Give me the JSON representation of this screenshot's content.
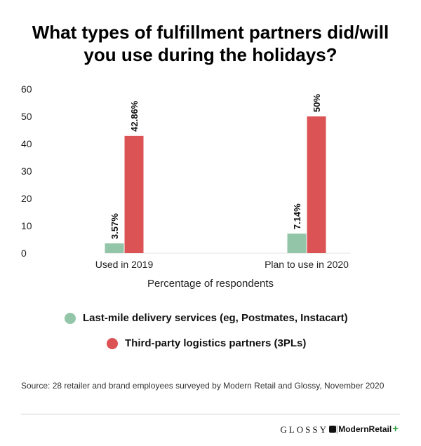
{
  "title_line1": "What types of fulfillment partners did/will",
  "title_line2": "you use during the holidays?",
  "chart_data": {
    "type": "bar",
    "categories": [
      "Used in 2019",
      "Plan to use in 2020"
    ],
    "series": [
      {
        "name": "Last-mile delivery services (eg, Postmates, Instacart)",
        "color": "#93c6a8",
        "values": [
          3.57,
          7.14
        ],
        "labels": [
          "3.57%",
          "7.14%"
        ]
      },
      {
        "name": "Third-party logistics partners (3PLs)",
        "color": "#dc5356",
        "values": [
          42.86,
          50
        ],
        "labels": [
          "42.86%",
          "50%"
        ]
      }
    ],
    "xlabel": "Percentage of respondents",
    "ylabel": "",
    "ylim": [
      0,
      60
    ],
    "yticks": [
      0,
      10,
      20,
      30,
      40,
      50,
      60
    ],
    "grid": false,
    "legend": "bottom"
  },
  "source": "Source: 28 retailer and brand employees surveyed by Modern Retail and Glossy, November 2020",
  "footer": {
    "glossy": "GLOSSY",
    "separator": "|",
    "modern_retail": "ModernRetail",
    "plus": "+"
  }
}
